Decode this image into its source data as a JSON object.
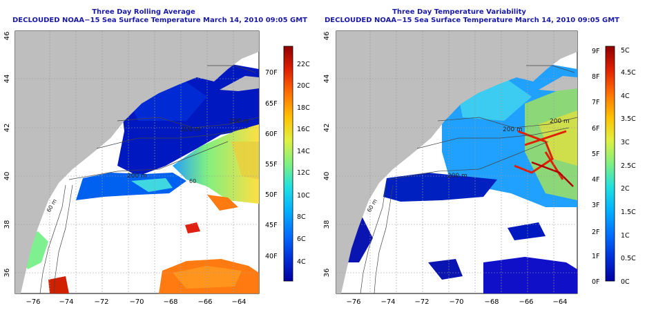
{
  "panels": [
    {
      "title": "Three Day Rolling Average",
      "subtitle": "DECLOUDED NOAA−15 Sea Surface Temperature March 14, 2010 09:05 GMT",
      "lon_ticks": [
        "−76",
        "−74",
        "−72",
        "−70",
        "−68",
        "−66",
        "−64"
      ],
      "lat_ticks": [
        "36",
        "38",
        "40",
        "42",
        "44",
        "46"
      ],
      "isobath_labels": [
        "200 m",
        "200 m",
        "200 m",
        "60 m",
        "60"
      ],
      "colorbar": {
        "gradient": [
          "#0000a0",
          "#0030d8",
          "#0070ff",
          "#00b0ff",
          "#20e0e0",
          "#80f080",
          "#e0f040",
          "#ffc000",
          "#ff7000",
          "#e02000",
          "#900000"
        ],
        "celsius": [
          "4C",
          "6C",
          "8C",
          "10C",
          "12C",
          "14C",
          "16C",
          "18C",
          "20C",
          "22C"
        ],
        "fahrenheit": [
          "40F",
          "45F",
          "50F",
          "55F",
          "60F",
          "65F",
          "70F"
        ]
      }
    },
    {
      "title": "Three Day Temperature Variability",
      "subtitle": "DECLOUDED NOAA−15 Sea Surface Temperature March 14, 2010 09:05 GMT",
      "lon_ticks": [
        "−76",
        "−74",
        "−72",
        "−70",
        "−68",
        "−66",
        "−64"
      ],
      "lat_ticks": [
        "36",
        "38",
        "40",
        "42",
        "44",
        "46"
      ],
      "isobath_labels": [
        "200 m",
        "200 m",
        "200 m",
        "60 m"
      ],
      "colorbar": {
        "gradient": [
          "#0000a0",
          "#0030d8",
          "#0070ff",
          "#00b0ff",
          "#20e0e0",
          "#80f080",
          "#e0f040",
          "#ffc000",
          "#ff7000",
          "#e02000",
          "#900000"
        ],
        "fahrenheit": [
          "0F",
          "1F",
          "2F",
          "3F",
          "4F",
          "5F",
          "6F",
          "7F",
          "8F",
          "9F"
        ],
        "celsius": [
          "0C",
          "0.5C",
          "1C",
          "1.5C",
          "2C",
          "2.5C",
          "3C",
          "3.5C",
          "4C",
          "4.5C",
          "5C"
        ]
      }
    }
  ],
  "colors": {
    "land": "#bebebe",
    "ocean_nodata": "#ffffff",
    "title": "#1a1aa8",
    "grid": "#9a9a9a"
  }
}
